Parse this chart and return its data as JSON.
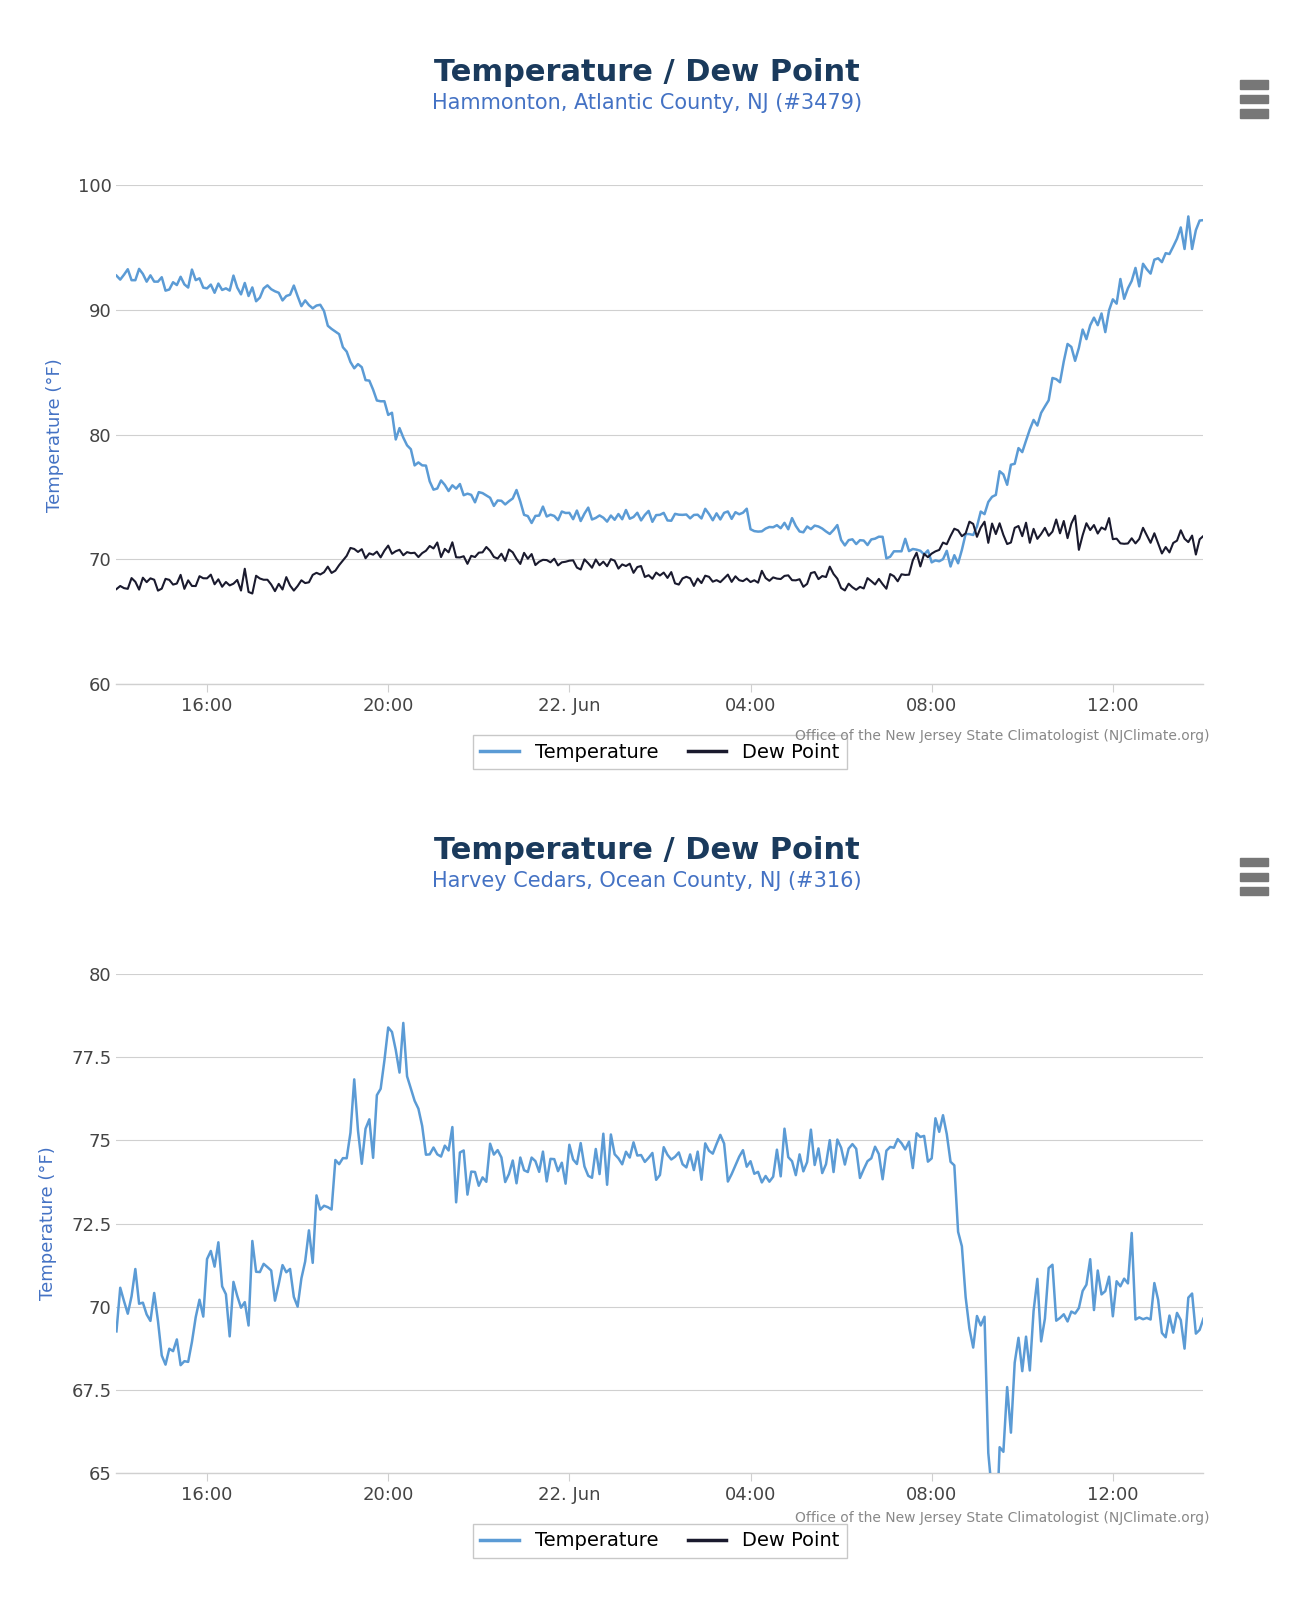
{
  "chart1": {
    "title": "Temperature / Dew Point",
    "subtitle": "Hammonton, Atlantic County, NJ (#3479)",
    "ylabel": "Temperature (°F)",
    "ylim": [
      60,
      100
    ],
    "yticks": [
      60,
      70,
      80,
      90,
      100
    ]
  },
  "chart2": {
    "title": "Temperature / Dew Point",
    "subtitle": "Harvey Cedars, Ocean County, NJ (#316)",
    "ylabel": "Temperature (°F)",
    "ylim": [
      65,
      80
    ],
    "yticks": [
      65,
      67.5,
      70,
      72.5,
      75,
      77.5,
      80
    ]
  },
  "tick_labels": [
    "16:00",
    "20:00",
    "22. Jun",
    "04:00",
    "08:00",
    "12:00"
  ],
  "tick_positions": [
    2,
    6,
    10,
    14,
    18,
    22
  ],
  "temp_color": "#5b9bd5",
  "dew_color": "#1a1a2e",
  "background_color": "#ffffff",
  "grid_color": "#d0d0d0",
  "title_color": "#1a3a5c",
  "subtitle_color": "#4472c4",
  "axis_label_color": "#4472c4",
  "footer_text": "Office of the New Jersey State Climatologist (NJClimate.org)",
  "hamburger_color": "#777777"
}
